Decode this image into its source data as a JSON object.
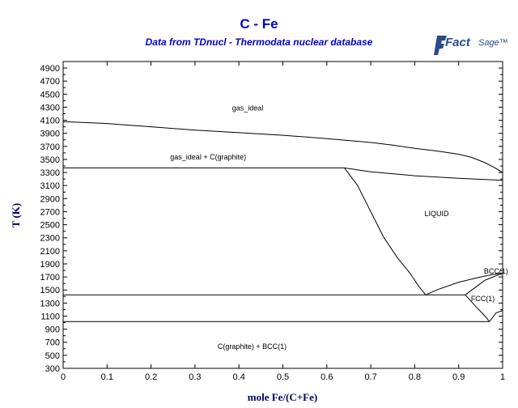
{
  "chart_data": {
    "type": "line",
    "title": "C - Fe",
    "subtitle": "Data from TDnucl - Thermodata nuclear database",
    "logo": "FactSage",
    "xlabel": "mole Fe/(C+Fe)",
    "ylabel": "T (K)",
    "xlim": [
      0,
      1
    ],
    "ylim": [
      300,
      5000
    ],
    "xticks": [
      0,
      0.1,
      0.2,
      0.3,
      0.4,
      0.5,
      0.6,
      0.7,
      0.8,
      0.9,
      1
    ],
    "xtick_labels": [
      "0",
      "0.1",
      "0.2",
      "0.3",
      "0.4",
      "0.5",
      "0.6",
      "0.7",
      "0.8",
      "0.9",
      "1"
    ],
    "yticks": [
      300,
      500,
      700,
      900,
      1100,
      1300,
      1500,
      1700,
      1900,
      2100,
      2300,
      2500,
      2700,
      2900,
      3100,
      3300,
      3500,
      3700,
      3900,
      4100,
      4300,
      4500,
      4700,
      4900
    ],
    "ytick_labels": [
      "300",
      "500",
      "700",
      "900",
      "1100",
      "1300",
      "1500",
      "1700",
      "1900",
      "2100",
      "2300",
      "2500",
      "2700",
      "2900",
      "3100",
      "3300",
      "3500",
      "3700",
      "3900",
      "4100",
      "4300",
      "4500",
      "4700",
      "4900"
    ],
    "colors": {
      "title": "#0000cc",
      "axis_label": "#000066",
      "lines": "#000000"
    },
    "series": [
      {
        "x": [
          0,
          0.1,
          0.2,
          0.3,
          0.4,
          0.5,
          0.6,
          0.7,
          0.75,
          0.8,
          0.85,
          0.9,
          0.93,
          0.96,
          0.98,
          1.0
        ],
        "y": [
          4080,
          4050,
          4000,
          3950,
          3910,
          3870,
          3820,
          3760,
          3720,
          3670,
          3630,
          3580,
          3530,
          3450,
          3380,
          3300
        ]
      },
      {
        "x": [
          0,
          0.64
        ],
        "y": [
          3370,
          3370
        ]
      },
      {
        "x": [
          0.64,
          0.7,
          0.8,
          0.9,
          1.0
        ],
        "y": [
          3370,
          3310,
          3250,
          3210,
          3180
        ]
      },
      {
        "x": [
          0.64,
          0.67,
          0.7,
          0.73,
          0.76,
          0.79,
          0.81,
          0.825
        ],
        "y": [
          3370,
          3100,
          2700,
          2300,
          2000,
          1750,
          1550,
          1425
        ]
      },
      {
        "x": [
          0.825,
          0.85,
          0.9,
          0.95,
          0.98,
          1.0
        ],
        "y": [
          1425,
          1500,
          1620,
          1700,
          1740,
          1760
        ]
      },
      {
        "x": [
          0,
          0.915
        ],
        "y": [
          1425,
          1425
        ]
      },
      {
        "x": [
          0.915,
          0.96,
          1.0
        ],
        "y": [
          1425,
          1650,
          1760
        ]
      },
      {
        "x": [
          0.915,
          0.94,
          0.96,
          0.97
        ],
        "y": [
          1425,
          1240,
          1100,
          1015
        ]
      },
      {
        "x": [
          0,
          0.97
        ],
        "y": [
          1015,
          1015
        ]
      },
      {
        "x": [
          0.97,
          0.985,
          1.0
        ],
        "y": [
          1015,
          1150,
          1185
        ]
      }
    ],
    "annotations": [
      {
        "text": "gas_ideal",
        "x": 0.42,
        "y": 4250
      },
      {
        "text": "gas_ideal + C(graphite)",
        "x": 0.33,
        "y": 3500
      },
      {
        "text": "LIQUID",
        "x": 0.85,
        "y": 2630
      },
      {
        "text": "BCC(1)",
        "x": 0.985,
        "y": 1750
      },
      {
        "text": "FCC(1)",
        "x": 0.955,
        "y": 1330
      },
      {
        "text": "C(graphite) + BCC(1)",
        "x": 0.43,
        "y": 600
      }
    ]
  }
}
